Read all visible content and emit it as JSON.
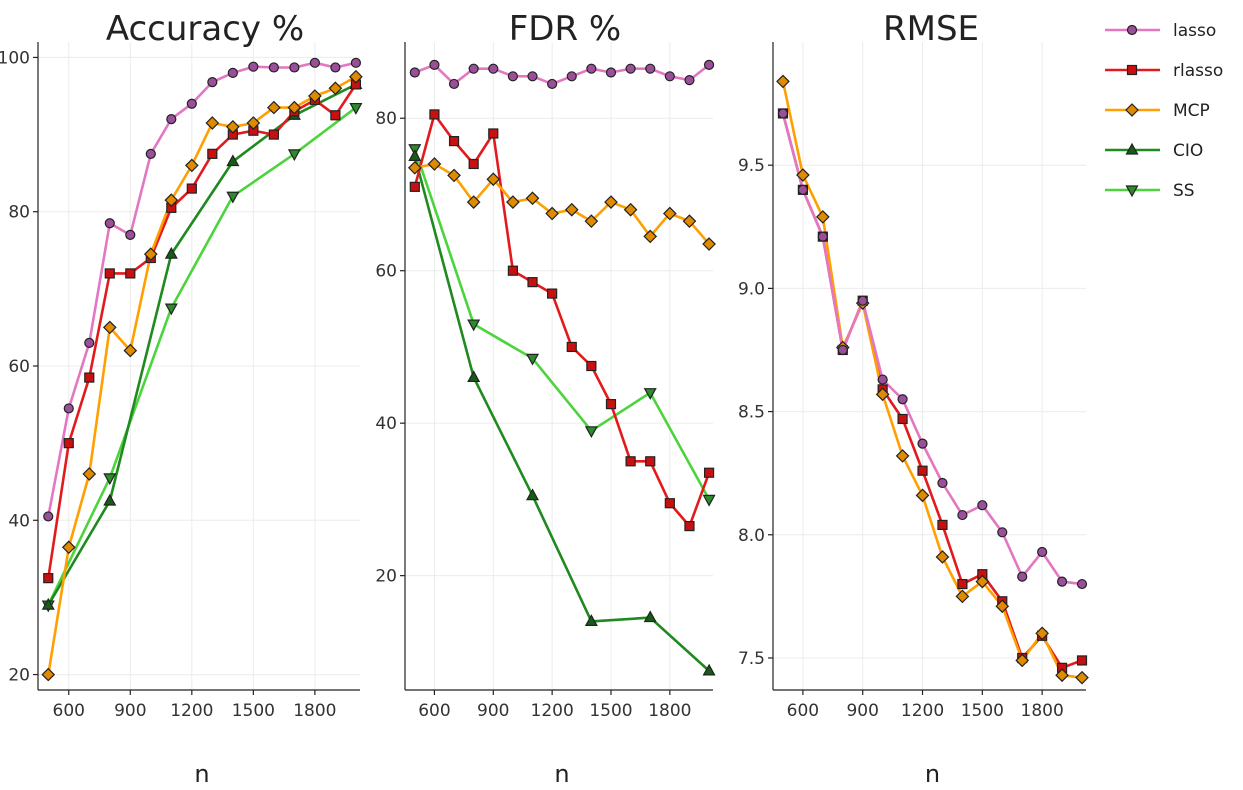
{
  "chart_data": [
    {
      "type": "line",
      "title": "Accuracy %",
      "xlabel": "n",
      "ylabel": "",
      "x": [
        500,
        600,
        700,
        800,
        900,
        1000,
        1100,
        1200,
        1300,
        1400,
        1500,
        1600,
        1700,
        1800,
        1900,
        2000
      ],
      "xlim": [
        450,
        2020
      ],
      "ylim": [
        18,
        102
      ],
      "xticks": [
        600,
        900,
        1200,
        1500,
        1800
      ],
      "yticks": [
        20,
        40,
        60,
        80,
        100
      ],
      "grid": true,
      "series": [
        {
          "name": "lasso",
          "marker": "circle",
          "x": [
            500,
            600,
            700,
            800,
            900,
            1000,
            1100,
            1200,
            1300,
            1400,
            1500,
            1600,
            1700,
            1800,
            1900,
            2000
          ],
          "values": [
            40.5,
            54.5,
            63,
            78.5,
            77,
            87.5,
            92,
            94,
            96.8,
            98,
            98.8,
            98.7,
            98.7,
            99.3,
            98.7,
            99.3
          ]
        },
        {
          "name": "rlasso",
          "marker": "square",
          "x": [
            500,
            600,
            700,
            800,
            900,
            1000,
            1100,
            1200,
            1300,
            1400,
            1500,
            1600,
            1700,
            1800,
            1900,
            2000
          ],
          "values": [
            32.5,
            50,
            58.5,
            72,
            72,
            74,
            80.5,
            83,
            87.5,
            90,
            90.5,
            90,
            93,
            94.5,
            92.5,
            96.5
          ]
        },
        {
          "name": "MCP",
          "marker": "diamond",
          "x": [
            500,
            600,
            700,
            800,
            900,
            1000,
            1100,
            1200,
            1300,
            1400,
            1500,
            1600,
            1700,
            1800,
            1900,
            2000
          ],
          "values": [
            20,
            36.5,
            46,
            65,
            62,
            74.5,
            81.5,
            86,
            91.5,
            91,
            91.5,
            93.5,
            93.5,
            95,
            96,
            97.5
          ]
        },
        {
          "name": "CIO",
          "marker": "triangle-up",
          "x": [
            500,
            800,
            1100,
            1400,
            1700,
            2000
          ],
          "values": [
            29,
            42.5,
            74.5,
            86.5,
            92.5,
            96.5
          ]
        },
        {
          "name": "SS",
          "marker": "triangle-down",
          "x": [
            500,
            800,
            1100,
            1400,
            1700,
            2000
          ],
          "values": [
            29,
            45.5,
            67.5,
            82,
            87.5,
            93.5
          ]
        }
      ]
    },
    {
      "type": "line",
      "title": "FDR %",
      "xlabel": "n",
      "ylabel": "",
      "x": [
        500,
        600,
        700,
        800,
        900,
        1000,
        1100,
        1200,
        1300,
        1400,
        1500,
        1600,
        1700,
        1800,
        1900,
        2000
      ],
      "xlim": [
        450,
        2020
      ],
      "ylim": [
        5,
        90
      ],
      "xticks": [
        600,
        900,
        1200,
        1500,
        1800
      ],
      "yticks": [
        20,
        40,
        60,
        80
      ],
      "grid": true,
      "series": [
        {
          "name": "lasso",
          "marker": "circle",
          "x": [
            500,
            600,
            700,
            800,
            900,
            1000,
            1100,
            1200,
            1300,
            1400,
            1500,
            1600,
            1700,
            1800,
            1900,
            2000
          ],
          "values": [
            86,
            87,
            84.5,
            86.5,
            86.5,
            85.5,
            85.5,
            84.5,
            85.5,
            86.5,
            86,
            86.5,
            86.5,
            85.5,
            85,
            87
          ]
        },
        {
          "name": "rlasso",
          "marker": "square",
          "x": [
            500,
            600,
            700,
            800,
            900,
            1000,
            1100,
            1200,
            1300,
            1400,
            1500,
            1600,
            1700,
            1800,
            1900,
            2000
          ],
          "values": [
            71,
            80.5,
            77,
            74,
            78,
            60,
            58.5,
            57,
            50,
            47.5,
            42.5,
            35,
            35,
            29.5,
            26.5,
            33.5
          ]
        },
        {
          "name": "MCP",
          "marker": "diamond",
          "x": [
            500,
            600,
            700,
            800,
            900,
            1000,
            1100,
            1200,
            1300,
            1400,
            1500,
            1600,
            1700,
            1800,
            1900,
            2000
          ],
          "values": [
            73.5,
            74,
            72.5,
            69,
            72,
            69,
            69.5,
            67.5,
            68,
            66.5,
            69,
            68,
            64.5,
            67.5,
            66.5,
            63.5
          ]
        },
        {
          "name": "CIO",
          "marker": "triangle-up",
          "x": [
            500,
            800,
            1100,
            1400,
            1700,
            2000
          ],
          "values": [
            75,
            46,
            30.5,
            14,
            14.5,
            7.5
          ]
        },
        {
          "name": "SS",
          "marker": "triangle-down",
          "x": [
            500,
            800,
            1100,
            1400,
            1700,
            2000
          ],
          "values": [
            76,
            53,
            48.5,
            39,
            44,
            30
          ]
        }
      ]
    },
    {
      "type": "line",
      "title": "RMSE",
      "xlabel": "n",
      "ylabel": "",
      "x": [
        500,
        600,
        700,
        800,
        900,
        1000,
        1100,
        1200,
        1300,
        1400,
        1500,
        1600,
        1700,
        1800,
        1900,
        2000
      ],
      "xlim": [
        450,
        2020
      ],
      "ylim": [
        7.37,
        10.0
      ],
      "xticks": [
        600,
        900,
        1200,
        1500,
        1800
      ],
      "yticks": [
        7.5,
        8.0,
        8.5,
        9.0,
        9.5
      ],
      "grid": true,
      "series": [
        {
          "name": "lasso",
          "marker": "circle",
          "x": [
            500,
            600,
            700,
            800,
            900,
            1000,
            1100,
            1200,
            1300,
            1400,
            1500,
            1600,
            1700,
            1800,
            1900,
            2000
          ],
          "values": [
            9.71,
            9.4,
            9.21,
            8.75,
            8.95,
            8.63,
            8.55,
            8.37,
            8.21,
            8.08,
            8.12,
            8.01,
            7.83,
            7.93,
            7.81,
            7.8
          ]
        },
        {
          "name": "rlasso",
          "marker": "square",
          "x": [
            500,
            600,
            700,
            800,
            900,
            1000,
            1100,
            1200,
            1300,
            1400,
            1500,
            1600,
            1700,
            1800,
            1900,
            2000
          ],
          "values": [
            9.71,
            9.4,
            9.21,
            8.75,
            8.95,
            8.59,
            8.47,
            8.26,
            8.04,
            7.8,
            7.84,
            7.73,
            7.5,
            7.59,
            7.46,
            7.49
          ]
        },
        {
          "name": "MCP",
          "marker": "diamond",
          "x": [
            500,
            600,
            700,
            800,
            900,
            1000,
            1100,
            1200,
            1300,
            1400,
            1500,
            1600,
            1700,
            1800,
            1900,
            2000
          ],
          "values": [
            9.84,
            9.46,
            9.29,
            8.76,
            8.94,
            8.57,
            8.32,
            8.16,
            7.91,
            7.75,
            7.81,
            7.71,
            7.49,
            7.6,
            7.43,
            7.42
          ]
        }
      ]
    }
  ],
  "legend": {
    "placement": "right",
    "items": [
      {
        "label": "lasso",
        "color": "#e377c2",
        "marker": "circle"
      },
      {
        "label": "rlasso",
        "color": "#e31a1c",
        "marker": "square"
      },
      {
        "label": "MCP",
        "color": "#ff9f00",
        "marker": "diamond"
      },
      {
        "label": "CIO",
        "color": "#1f8a1f",
        "marker": "triangle-up"
      },
      {
        "label": "SS",
        "color": "#4cd43c",
        "marker": "triangle-down"
      }
    ]
  },
  "colors": {
    "lasso": "#e377c2",
    "rlasso": "#e31a1c",
    "MCP": "#ff9f00",
    "CIO": "#1f8a1f",
    "SS": "#4cd43c",
    "marker_fill": {
      "lasso": "#9b4f9b",
      "rlasso": "#c81010",
      "MCP": "#e08a00",
      "CIO": "#165c16",
      "SS": "#2a8c2a"
    }
  }
}
